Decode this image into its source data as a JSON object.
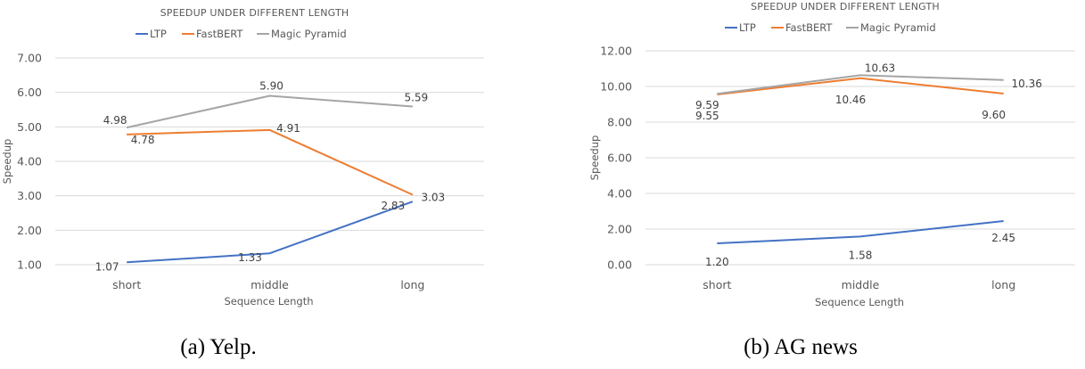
{
  "chart_data": [
    {
      "type": "line",
      "title": "SPEEDUP UNDER DIFFERENT LENGTH",
      "xlabel": "Sequence Length",
      "ylabel": "Speedup",
      "caption": "(a) Yelp.",
      "categories": [
        "short",
        "middle",
        "long"
      ],
      "ylim": [
        1.0,
        7.0
      ],
      "yticks": [
        "1.00",
        "2.00",
        "3.00",
        "4.00",
        "5.00",
        "6.00",
        "7.00"
      ],
      "grid": true,
      "legend_position": "top",
      "series": [
        {
          "name": "LTP",
          "color": "#4472c4",
          "values": [
            1.07,
            1.33,
            2.83
          ],
          "labels": [
            "1.07",
            "1.33",
            "2.83"
          ]
        },
        {
          "name": "FastBERT",
          "color": "#ed7d31",
          "values": [
            4.78,
            4.91,
            3.03
          ],
          "labels": [
            "4.78",
            "4.91",
            "3.03"
          ]
        },
        {
          "name": "Magic Pyramid",
          "color": "#a5a5a5",
          "values": [
            4.98,
            5.9,
            5.59
          ],
          "labels": [
            "4.98",
            "5.90",
            "5.59"
          ]
        }
      ]
    },
    {
      "type": "line",
      "title": "SPEEDUP UNDER DIFFERENT LENGTH",
      "xlabel": "Sequence Length",
      "ylabel": "Speedup",
      "caption": "(b) AG news",
      "categories": [
        "short",
        "middle",
        "long"
      ],
      "ylim": [
        0.0,
        12.0
      ],
      "yticks": [
        "0.00",
        "2.00",
        "4.00",
        "6.00",
        "8.00",
        "10.00",
        "12.00"
      ],
      "grid": true,
      "legend_position": "top",
      "series": [
        {
          "name": "LTP",
          "color": "#4472c4",
          "values": [
            1.2,
            1.58,
            2.45
          ],
          "labels": [
            "1.20",
            "1.58",
            "2.45"
          ]
        },
        {
          "name": "FastBERT",
          "color": "#ed7d31",
          "values": [
            9.55,
            10.46,
            9.6
          ],
          "labels": [
            "9.55",
            "10.46",
            "9.60"
          ]
        },
        {
          "name": "Magic Pyramid",
          "color": "#a5a5a5",
          "values": [
            9.59,
            10.63,
            10.36
          ],
          "labels": [
            "9.59",
            "10.63",
            "10.36"
          ]
        }
      ]
    }
  ]
}
